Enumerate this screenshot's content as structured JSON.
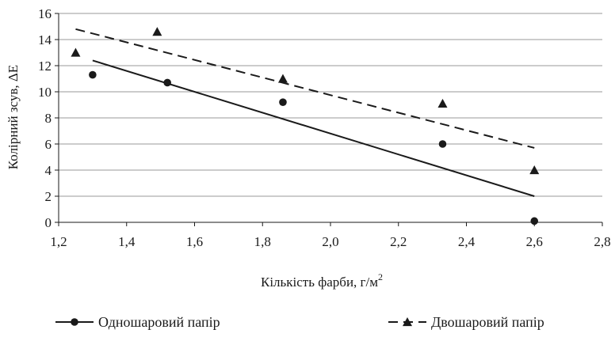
{
  "chart_data": {
    "type": "scatter",
    "title": "",
    "xlabel_main": "Кількість фарби, г/м",
    "xlabel_sup": "2",
    "ylabel": "Колірний зсув,  ΔE",
    "xlim": [
      1.2,
      2.8
    ],
    "ylim": [
      0,
      16
    ],
    "x_ticks": [
      1.2,
      1.4,
      1.6,
      1.8,
      2.0,
      2.2,
      2.4,
      2.6,
      2.8
    ],
    "x_tick_labels": [
      "1,2",
      "1,4",
      "1,6",
      "1,8",
      "2,0",
      "2,2",
      "2,4",
      "2,6",
      "2,8"
    ],
    "y_ticks": [
      0,
      2,
      4,
      6,
      8,
      10,
      12,
      14,
      16
    ],
    "y_tick_labels": [
      "0",
      "2",
      "4",
      "6",
      "8",
      "10",
      "12",
      "14",
      "16"
    ],
    "grid": "horizontal",
    "legend_position": "bottom",
    "series": [
      {
        "name": "Одношаровий папір",
        "marker": "circle",
        "line_style": "solid",
        "color": "#1a1a1a",
        "points": [
          {
            "x": 1.3,
            "y": 11.3
          },
          {
            "x": 1.52,
            "y": 10.7
          },
          {
            "x": 1.86,
            "y": 9.2
          },
          {
            "x": 2.33,
            "y": 6.0
          },
          {
            "x": 2.6,
            "y": 0.1
          }
        ],
        "trendline": {
          "x": [
            1.3,
            2.6
          ],
          "y": [
            12.4,
            2.0
          ]
        }
      },
      {
        "name": "Двошаровий папір",
        "marker": "triangle",
        "line_style": "dashed",
        "color": "#1a1a1a",
        "points": [
          {
            "x": 1.25,
            "y": 13.0
          },
          {
            "x": 1.49,
            "y": 14.6
          },
          {
            "x": 1.86,
            "y": 11.0
          },
          {
            "x": 2.33,
            "y": 9.1
          },
          {
            "x": 2.6,
            "y": 4.0
          }
        ],
        "trendline": {
          "x": [
            1.25,
            2.6
          ],
          "y": [
            14.8,
            5.7
          ]
        }
      }
    ]
  }
}
